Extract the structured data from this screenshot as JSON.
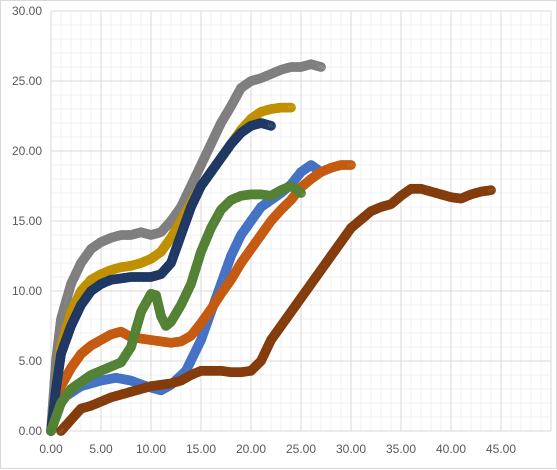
{
  "chart_data": {
    "type": "scatter",
    "title": "",
    "xlabel": "",
    "ylabel": "",
    "xlim": [
      0,
      50
    ],
    "ylim": [
      0,
      30
    ],
    "x_ticks": [
      "0.00",
      "5.00",
      "10.00",
      "15.00",
      "20.00",
      "25.00",
      "30.00",
      "35.00",
      "40.00",
      "45.00"
    ],
    "y_ticks": [
      "0.00",
      "5.00",
      "10.00",
      "15.00",
      "20.00",
      "25.00",
      "30.00"
    ],
    "x_tick_values": [
      0,
      5,
      10,
      15,
      20,
      25,
      30,
      35,
      40,
      45
    ],
    "y_tick_values": [
      0,
      5,
      10,
      15,
      20,
      25,
      30
    ],
    "grid": true,
    "minor_grid": true,
    "legend": "none",
    "marker": "open-circle",
    "series": [
      {
        "color": "#4472c4",
        "x": [
          0,
          0.5,
          1.5,
          3,
          5,
          6.5,
          8,
          9.5,
          11,
          12,
          13.5,
          15,
          16,
          17,
          18,
          19,
          20,
          21,
          22,
          23,
          24,
          25,
          26,
          27
        ],
        "y": [
          0,
          1.5,
          2.5,
          3.2,
          3.6,
          3.8,
          3.6,
          3.2,
          2.9,
          3.3,
          4.3,
          6.5,
          8.5,
          10.5,
          12.5,
          14,
          15,
          16,
          16.5,
          17,
          17.6,
          18.5,
          19,
          18.5
        ]
      },
      {
        "color": "#c55a11",
        "x": [
          0,
          0.5,
          1,
          2,
          3,
          4,
          5,
          6,
          7,
          8,
          9,
          10,
          11,
          12,
          13,
          14,
          15,
          16,
          17,
          18,
          19,
          20,
          21,
          22,
          23,
          24,
          25,
          26,
          27,
          28,
          29,
          30
        ],
        "y": [
          0,
          2,
          3.2,
          4.5,
          5.5,
          6.1,
          6.5,
          6.9,
          7.1,
          6.7,
          6.6,
          6.5,
          6.4,
          6.3,
          6.4,
          6.8,
          7.7,
          8.7,
          9.8,
          10.8,
          12,
          13,
          14,
          15,
          15.8,
          16.5,
          17.4,
          18,
          18.5,
          18.8,
          19,
          19
        ]
      },
      {
        "color": "#7f7f7f",
        "x": [
          0,
          0.5,
          1,
          2,
          3,
          4,
          5,
          6,
          7,
          8,
          9,
          10,
          11,
          12,
          13,
          14,
          15,
          16,
          17,
          18,
          19,
          20,
          21,
          22,
          23,
          24,
          25,
          26,
          27
        ],
        "y": [
          0,
          5,
          8,
          10.5,
          12,
          13,
          13.5,
          13.8,
          14,
          14,
          14.2,
          14,
          14.2,
          15,
          16,
          17.5,
          19,
          20.5,
          22,
          23.2,
          24.5,
          25,
          25.2,
          25.5,
          25.8,
          26,
          26,
          26.2,
          26
        ]
      },
      {
        "color": "#bf9000",
        "x": [
          0,
          0.5,
          1,
          2,
          3,
          4,
          5,
          6,
          7,
          8,
          9,
          10,
          11,
          12,
          13,
          14,
          15,
          16,
          17,
          18,
          19,
          20,
          21,
          22,
          23,
          24
        ],
        "y": [
          0,
          3,
          6,
          8.5,
          10,
          10.8,
          11.2,
          11.5,
          11.7,
          11.8,
          12,
          12.3,
          12.8,
          13.8,
          15,
          16.3,
          17.5,
          18.5,
          19.5,
          20.5,
          21.5,
          22.3,
          22.8,
          23,
          23.1,
          23.1
        ]
      },
      {
        "color": "#1f3864",
        "x": [
          0,
          0.5,
          1,
          2,
          3,
          4,
          5,
          6,
          7,
          8,
          9,
          10,
          11,
          12,
          13,
          14,
          15,
          16,
          17,
          18,
          19,
          20,
          21,
          22
        ],
        "y": [
          0,
          3,
          5.5,
          7.5,
          9,
          10,
          10.5,
          10.8,
          10.9,
          11,
          11,
          11,
          11.2,
          12,
          14,
          16,
          17.5,
          18.5,
          19.5,
          20.5,
          21.3,
          21.8,
          22,
          21.8
        ]
      },
      {
        "color": "#548235",
        "x": [
          0,
          0.5,
          1,
          2,
          3,
          4,
          5,
          6,
          7,
          8,
          9,
          10,
          10.5,
          11,
          11.5,
          12,
          13,
          14,
          15,
          16,
          17,
          18,
          19,
          20,
          21,
          22,
          23,
          24,
          25
        ],
        "y": [
          0,
          1,
          2,
          3,
          3.5,
          4,
          4.3,
          4.6,
          4.9,
          6,
          8.5,
          9.8,
          9.7,
          8.2,
          7.5,
          7.8,
          9,
          10.5,
          12.8,
          14.5,
          15.8,
          16.5,
          16.8,
          16.9,
          16.9,
          16.8,
          17.2,
          17.5,
          17
        ]
      },
      {
        "color": "#843c0c",
        "x": [
          1,
          2,
          3,
          4,
          5,
          6,
          7,
          8,
          9,
          10,
          11,
          12,
          13,
          14,
          15,
          16,
          17,
          18,
          19,
          20,
          21,
          22,
          24,
          26,
          28,
          30,
          32,
          33,
          34,
          35,
          36,
          37,
          38,
          39,
          40,
          41,
          42,
          43,
          44
        ],
        "y": [
          0,
          0.8,
          1.6,
          1.8,
          2.1,
          2.4,
          2.6,
          2.8,
          3,
          3.2,
          3.3,
          3.4,
          3.6,
          4,
          4.3,
          4.3,
          4.3,
          4.2,
          4.2,
          4.3,
          5,
          6.5,
          8.5,
          10.5,
          12.5,
          14.5,
          15.7,
          16,
          16.2,
          16.8,
          17.3,
          17.3,
          17.1,
          16.9,
          16.7,
          16.6,
          16.9,
          17.1,
          17.2
        ]
      }
    ]
  }
}
